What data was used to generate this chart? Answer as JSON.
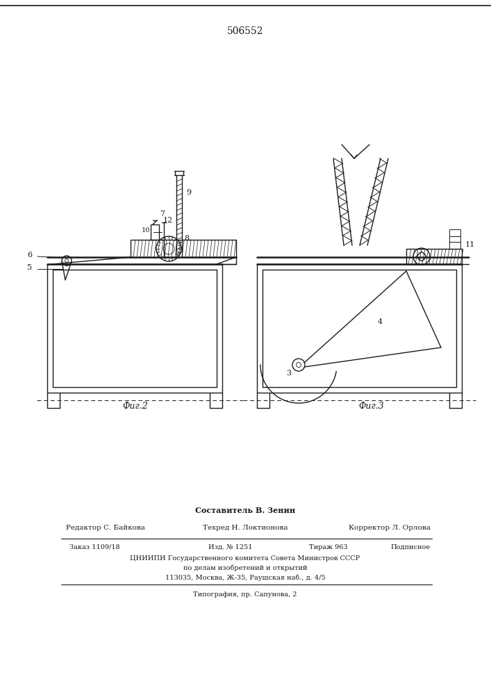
{
  "patent_number": "506552",
  "fig2_label": "Фиг.2",
  "fig3_label": "Фиг.3",
  "composer_text": "Составитель В. Зенин",
  "editor_text": "Редактор С. Байкова",
  "techred_text": "Техред Н. Локтионова",
  "corrector_text": "Корректор Л. Орлова",
  "order_text": "Заказ 1109/18",
  "izd_text": "Изд. № 1251",
  "tiraj_text": "Тираж 963",
  "podpisnoe_text": "Подписное",
  "cniiipi_text": "ЦНИИПИ Государственного комитета Совета Министров СССР",
  "po_delam_text": "по делам изобретений и открытий",
  "address_text": "113035, Москва, Ж-35, Раушская наб., д. 4/5",
  "tipografia_text": "Типография, пр. Сапунова, 2",
  "bg_color": "#ffffff",
  "line_color": "#1a1a1a"
}
